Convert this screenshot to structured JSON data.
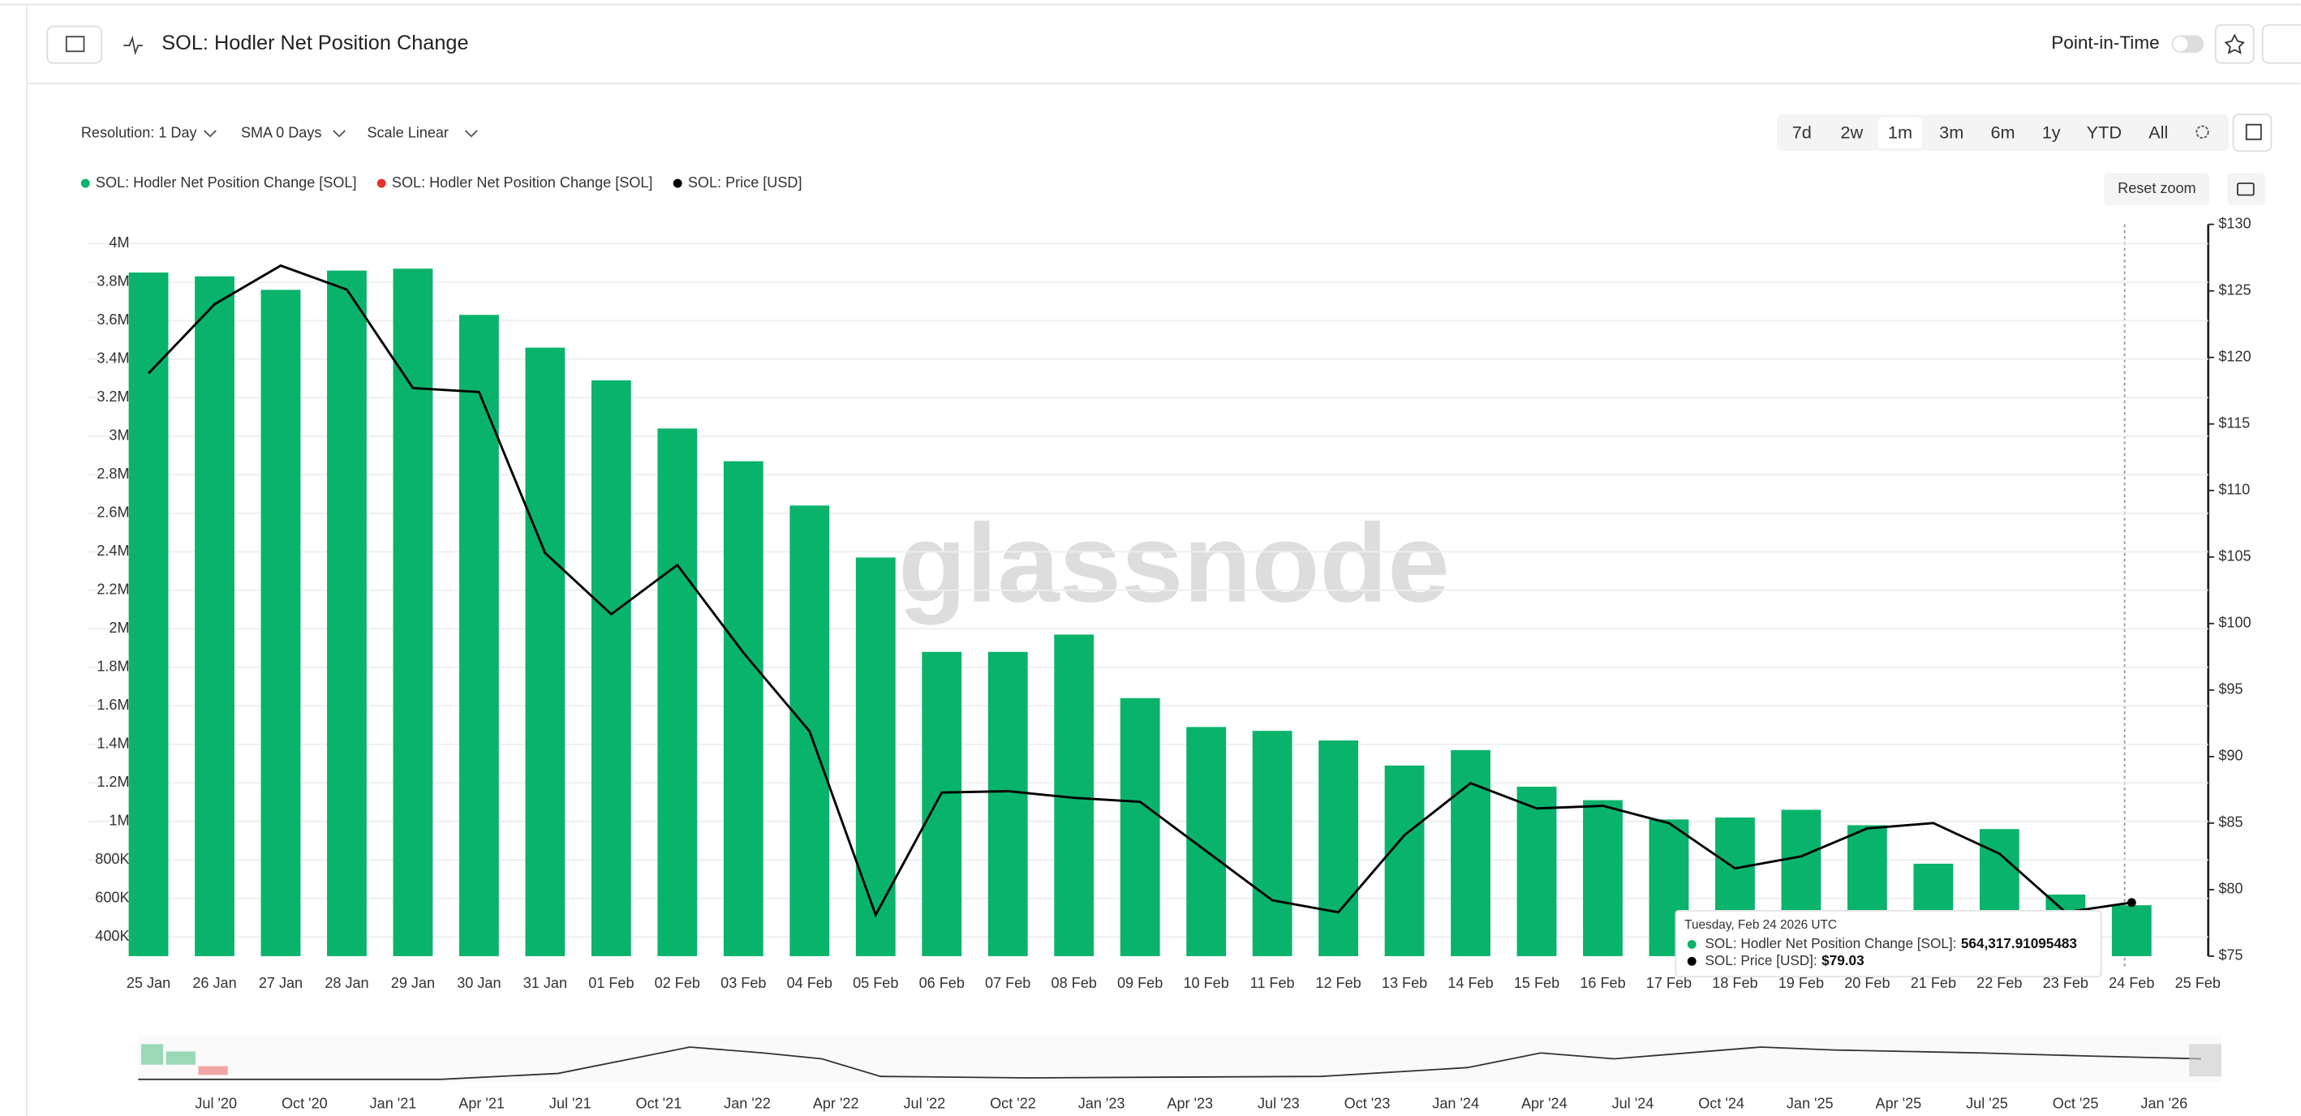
{
  "header": {
    "title": "SOL: Hodler Net Position Change",
    "point_in_time": "Point-in-Time"
  },
  "controls": {
    "resolution": "Resolution: 1 Day",
    "sma": "SMA 0 Days",
    "scale": "Scale Linear",
    "ranges": [
      "7d",
      "2w",
      "1m",
      "3m",
      "6m",
      "1y",
      "YTD",
      "All"
    ],
    "reset_zoom": "Reset zoom"
  },
  "watermark": "glassnode",
  "chart_data": {
    "type": "bar",
    "categories": [
      "25 Jan",
      "26 Jan",
      "27 Jan",
      "28 Jan",
      "29 Jan",
      "30 Jan",
      "31 Jan",
      "01 Feb",
      "02 Feb",
      "03 Feb",
      "04 Feb",
      "05 Feb",
      "06 Feb",
      "07 Feb",
      "08 Feb",
      "09 Feb",
      "10 Feb",
      "11 Feb",
      "12 Feb",
      "13 Feb",
      "14 Feb",
      "15 Feb",
      "16 Feb",
      "17 Feb",
      "18 Feb",
      "19 Feb",
      "20 Feb",
      "21 Feb",
      "22 Feb",
      "23 Feb",
      "24 Feb",
      "25 Feb"
    ],
    "series": [
      {
        "name": "SOL: Hodler Net Position Change [SOL]",
        "color": "#0ab36b",
        "values": [
          3850000,
          3830000,
          3760000,
          3860000,
          3870000,
          3630000,
          3460000,
          3290000,
          3040000,
          2870000,
          2640000,
          2370000,
          1880000,
          1880000,
          1970000,
          1640000,
          1490000,
          1470000,
          1420000,
          1290000,
          1370000,
          1180000,
          1110000,
          1010000,
          1020000,
          1060000,
          980000,
          780000,
          960000,
          620000,
          564317.91095483,
          null
        ]
      },
      {
        "name": "SOL: Hodler Net Position Change [SOL]",
        "color": "#e5312f",
        "values": [
          null,
          null,
          null,
          null,
          null,
          null,
          null,
          null,
          null,
          null,
          null,
          null,
          null,
          null,
          null,
          null,
          null,
          null,
          null,
          null,
          null,
          null,
          null,
          null,
          null,
          null,
          null,
          null,
          null,
          null,
          null,
          null
        ]
      },
      {
        "name": "SOL: Price [USD]",
        "color": "#000000",
        "axis": "y2",
        "values": [
          118.8,
          124.0,
          126.9,
          125.1,
          117.7,
          117.4,
          105.3,
          100.7,
          104.4,
          97.8,
          91.9,
          78.1,
          87.3,
          87.4,
          86.9,
          86.6,
          82.9,
          79.2,
          78.3,
          84.1,
          88.0,
          86.1,
          86.3,
          85.0,
          81.6,
          82.5,
          84.6,
          85.0,
          82.7,
          78.3,
          79.03,
          null
        ]
      }
    ],
    "ylim": [
      300000,
      4100000
    ],
    "yticks": [
      {
        "value": 400000,
        "label": "400K"
      },
      {
        "value": 600000,
        "label": "600K"
      },
      {
        "value": 800000,
        "label": "800K"
      },
      {
        "value": 1000000,
        "label": "1M"
      },
      {
        "value": 1200000,
        "label": "1.2M"
      },
      {
        "value": 1400000,
        "label": "1.4M"
      },
      {
        "value": 1600000,
        "label": "1.6M"
      },
      {
        "value": 1800000,
        "label": "1.8M"
      },
      {
        "value": 2000000,
        "label": "2M"
      },
      {
        "value": 2200000,
        "label": "2.2M"
      },
      {
        "value": 2400000,
        "label": "2.4M"
      },
      {
        "value": 2600000,
        "label": "2.6M"
      },
      {
        "value": 2800000,
        "label": "2.8M"
      },
      {
        "value": 3000000,
        "label": "3M"
      },
      {
        "value": 3200000,
        "label": "3.2M"
      },
      {
        "value": 3400000,
        "label": "3.4M"
      },
      {
        "value": 3600000,
        "label": "3.6M"
      },
      {
        "value": 3800000,
        "label": "3.8M"
      },
      {
        "value": 4000000,
        "label": "4M"
      }
    ],
    "y2lim": [
      75,
      130
    ],
    "y2ticks": [
      {
        "value": 75,
        "label": "$75"
      },
      {
        "value": 80,
        "label": "$80"
      },
      {
        "value": 85,
        "label": "$85"
      },
      {
        "value": 90,
        "label": "$90"
      },
      {
        "value": 95,
        "label": "$95"
      },
      {
        "value": 100,
        "label": "$100"
      },
      {
        "value": 105,
        "label": "$105"
      },
      {
        "value": 110,
        "label": "$110"
      },
      {
        "value": 115,
        "label": "$115"
      },
      {
        "value": 120,
        "label": "$120"
      },
      {
        "value": 125,
        "label": "$125"
      },
      {
        "value": 130,
        "label": "$130"
      }
    ],
    "grid": true
  },
  "tooltip": {
    "date": "Tuesday, Feb 24 2026 UTC",
    "rows": [
      {
        "label": "SOL: Hodler Net Position Change [SOL]:",
        "value": "564,317.91095483"
      },
      {
        "label": "SOL: Price [USD]:",
        "value": "$79.03"
      }
    ]
  },
  "navigator": {
    "labels": [
      "Jul '20",
      "Oct '20",
      "Jan '21",
      "Apr '21",
      "Jul '21",
      "Oct '21",
      "Jan '22",
      "Apr '22",
      "Jul '22",
      "Oct '22",
      "Jan '23",
      "Apr '23",
      "Jul '23",
      "Oct '23",
      "Jan '24",
      "Apr '24",
      "Jul '24",
      "Oct '24",
      "Jan '25",
      "Apr '25",
      "Jul '25",
      "Oct '25",
      "Jan '26"
    ]
  }
}
